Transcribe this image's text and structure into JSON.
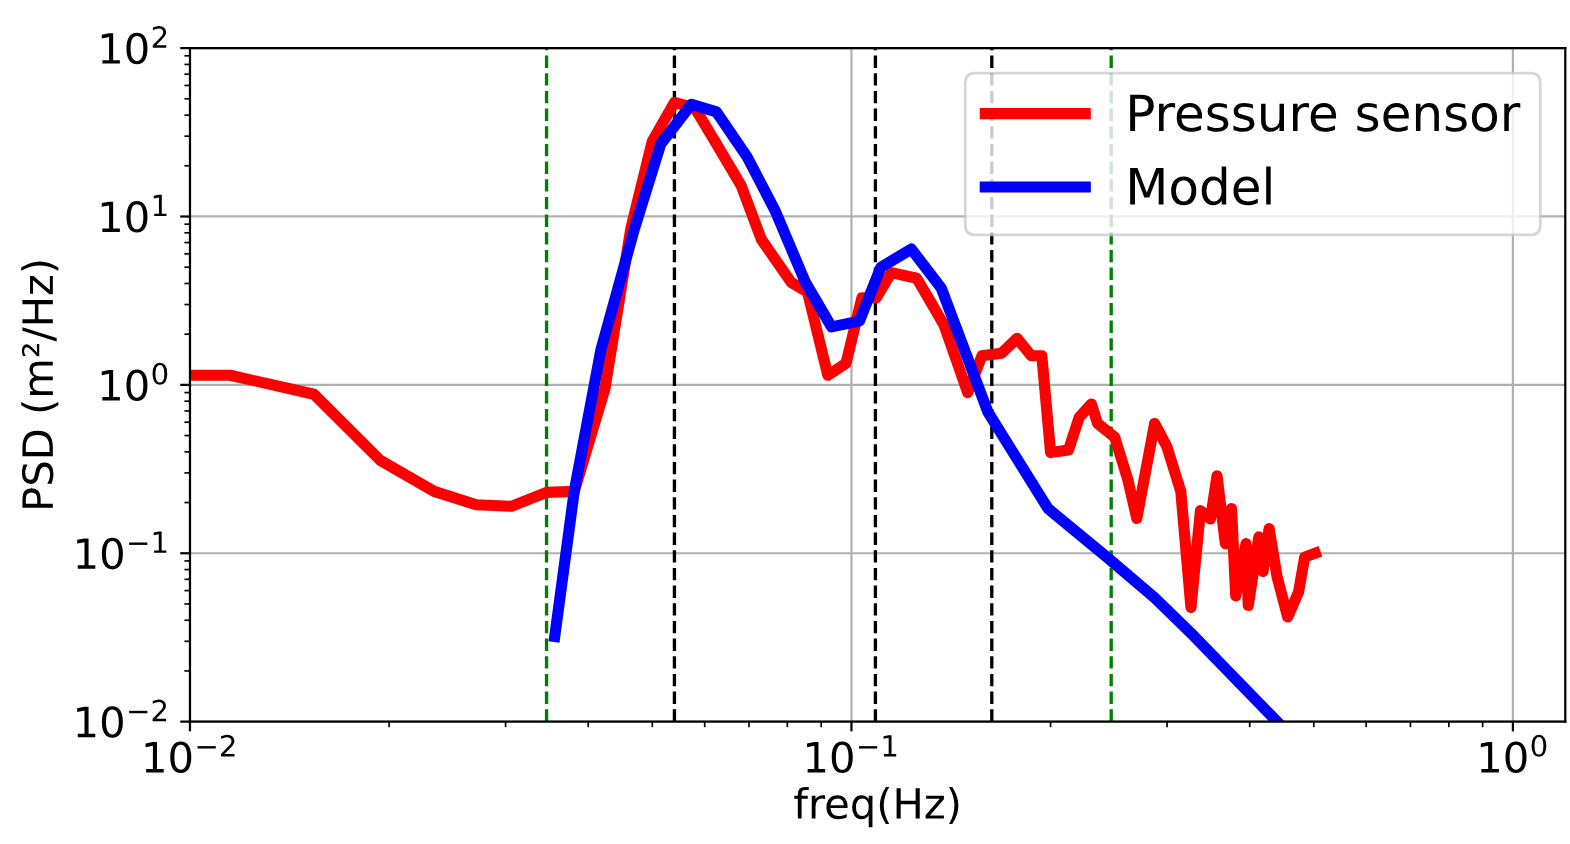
{
  "chart_data": {
    "type": "line",
    "xlabel": "freq(Hz)",
    "ylabel": "PSD (m²/Hz)",
    "log": "xy",
    "grid": true,
    "legend": "top right",
    "marker": "none",
    "line_style": "solid",
    "xlim": [
      0.01,
      1.2
    ],
    "ylim": [
      0.01,
      100
    ],
    "xticks": [
      {
        "value": 0.01,
        "label": "10$^{−2}$"
      },
      {
        "value": 0.1,
        "label": "10$^{−1}$"
      },
      {
        "value": 1,
        "label": "10$^{0}$"
      }
    ],
    "yticks": [
      {
        "value": 0.01,
        "label": "10$^{−2}$"
      },
      {
        "value": 0.1,
        "label": "10$^{−1}$"
      },
      {
        "value": 1,
        "label": "10$^{0}$"
      },
      {
        "value": 10,
        "label": "10$^{1}$"
      },
      {
        "value": 100,
        "label": "10$^{2}$"
      }
    ],
    "series": [
      {
        "name": "Pressure sensor",
        "color": "#ff0000",
        "x": [
          0.01,
          0.0115,
          0.0154,
          0.0194,
          0.0234,
          0.0271,
          0.0306,
          0.0346,
          0.0381,
          0.0424,
          0.0464,
          0.05,
          0.054,
          0.058,
          0.0625,
          0.0681,
          0.0731,
          0.0811,
          0.0858,
          0.0921,
          0.0981,
          0.1037,
          0.109,
          0.1149,
          0.1255,
          0.1318,
          0.138,
          0.1499,
          0.1575,
          0.1686,
          0.178,
          0.187,
          0.194,
          0.2,
          0.2129,
          0.2209,
          0.2305,
          0.2355,
          0.25,
          0.2617,
          0.27,
          0.2873,
          0.2998,
          0.3147,
          0.326,
          0.337,
          0.349,
          0.357,
          0.3675,
          0.3755,
          0.381,
          0.395,
          0.398,
          0.413,
          0.419,
          0.428,
          0.44,
          0.4566,
          0.4742,
          0.4843,
          0.5025
        ],
        "values": [
          1.14,
          1.14,
          0.88,
          0.356,
          0.233,
          0.194,
          0.19,
          0.23,
          0.233,
          0.95,
          8.5,
          28,
          47.6,
          44,
          27,
          15.3,
          7.3,
          4.06,
          3.56,
          1.14,
          1.34,
          3.29,
          3.29,
          4.64,
          4.3,
          3.1,
          2.27,
          0.9,
          1.49,
          1.54,
          1.89,
          1.49,
          1.49,
          0.396,
          0.41,
          0.64,
          0.77,
          0.59,
          0.49,
          0.274,
          0.161,
          0.59,
          0.43,
          0.233,
          0.0477,
          0.179,
          0.16,
          0.288,
          0.114,
          0.184,
          0.0558,
          0.114,
          0.0489,
          0.125,
          0.078,
          0.14,
          0.0725,
          0.0418,
          0.0589,
          0.0948,
          0.1
        ]
      },
      {
        "name": "Model",
        "color": "#0000ff",
        "x": [
          0.0356,
          0.0381,
          0.0418,
          0.047,
          0.0515,
          0.0573,
          0.0625,
          0.0695,
          0.0767,
          0.0852,
          0.0933,
          0.1028,
          0.1108,
          0.1232,
          0.1367,
          0.1608,
          0.1807,
          0.1983,
          0.2433,
          0.2873,
          0.33,
          0.44
        ],
        "values": [
          0.032,
          0.233,
          1.61,
          8.5,
          27,
          46.4,
          41.8,
          22.7,
          10.8,
          4.06,
          2.21,
          2.39,
          5.0,
          6.4,
          3.76,
          0.69,
          0.33,
          0.184,
          0.0948,
          0.0544,
          0.032,
          0.01
        ]
      }
    ],
    "ref_lines": [
      {
        "axis": "x",
        "value": 0.0346,
        "label": null,
        "color": "#008000",
        "line_style": "dashed"
      },
      {
        "axis": "x",
        "value": 0.054,
        "label": null,
        "color": "#000000",
        "line_style": "dashed"
      },
      {
        "axis": "x",
        "value": 0.1087,
        "label": null,
        "color": "#000000",
        "line_style": "dashed"
      },
      {
        "axis": "x",
        "value": 0.163,
        "label": null,
        "color": "#000000",
        "line_style": "dashed"
      },
      {
        "axis": "x",
        "value": 0.247,
        "label": null,
        "color": "#008000",
        "line_style": "dashed"
      }
    ]
  }
}
